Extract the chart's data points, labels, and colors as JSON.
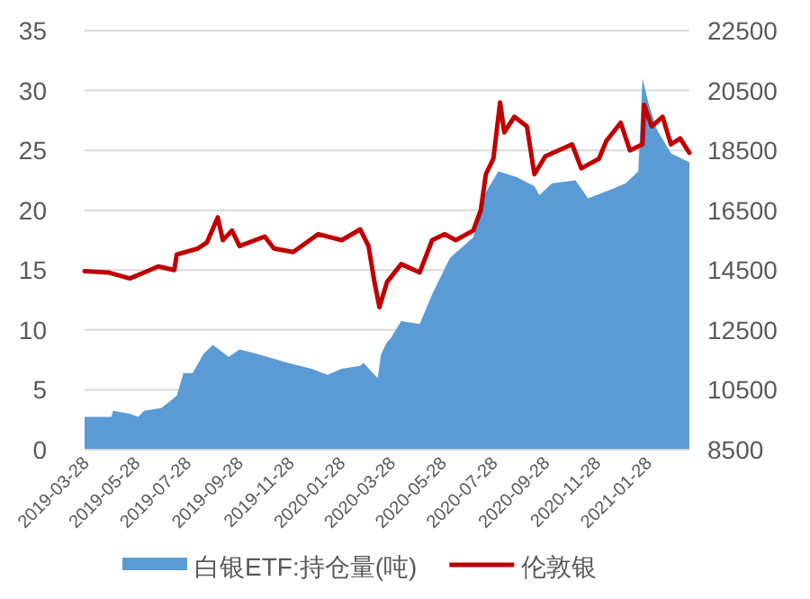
{
  "chart_data": {
    "type": "line",
    "xlim": [
      "2019-03-28",
      "2021-03-19"
    ],
    "xticks": [
      "2019-03-28",
      "2019-05-28",
      "2019-07-28",
      "2019-09-28",
      "2019-11-28",
      "2020-01-28",
      "2020-03-28",
      "2020-05-28",
      "2020-07-28",
      "2020-09-28",
      "2020-11-28",
      "2021-01-28"
    ],
    "ylim": [
      0,
      35
    ],
    "yticks": [
      0,
      5,
      10,
      15,
      20,
      25,
      30,
      35
    ],
    "y2lim": [
      8500,
      22500
    ],
    "y2ticks": [
      8500,
      10500,
      12500,
      14500,
      16500,
      18500,
      20500,
      22500
    ],
    "grid": "y",
    "legend": "bottom",
    "series": [
      {
        "name": "白银ETF:持仓量(吨)",
        "type": "area",
        "axis": "y2",
        "color": "#5b9bd5",
        "x": [
          "2019-03-28",
          "2019-04-29",
          "2019-05-01",
          "2019-05-21",
          "2019-05-31",
          "2019-06-07",
          "2019-06-28",
          "2019-07-16",
          "2019-07-24",
          "2019-08-04",
          "2019-08-17",
          "2019-08-28",
          "2019-09-16",
          "2019-09-29",
          "2019-10-20",
          "2019-11-26",
          "2019-12-24",
          "2020-01-12",
          "2020-01-29",
          "2020-02-20",
          "2020-02-24",
          "2020-03-08",
          "2020-03-12",
          "2020-03-16",
          "2020-03-23",
          "2020-03-27",
          "2020-04-09",
          "2020-05-01",
          "2020-05-16",
          "2020-06-06",
          "2020-07-04",
          "2020-07-19",
          "2020-08-03",
          "2020-08-25",
          "2020-09-15",
          "2020-09-21",
          "2020-10-06",
          "2020-11-03",
          "2020-11-18",
          "2020-12-16",
          "2021-01-02",
          "2021-01-17",
          "2021-01-22",
          "2021-01-29",
          "2021-02-08",
          "2021-02-25",
          "2021-03-19"
        ],
        "values": [
          9600,
          9600,
          9800,
          9700,
          9600,
          9800,
          9900,
          10300,
          11060,
          11060,
          11700,
          12000,
          11600,
          11850,
          11700,
          11400,
          11200,
          11000,
          11200,
          11300,
          11400,
          11000,
          10900,
          11700,
          12100,
          12200,
          12800,
          12700,
          13700,
          14900,
          15600,
          17100,
          17800,
          17600,
          17300,
          17000,
          17400,
          17500,
          16900,
          17200,
          17400,
          17800,
          20900,
          20100,
          19200,
          18400,
          18100
        ]
      },
      {
        "name": "伦敦银",
        "color": "#c00000",
        "x": [
          "2019-03-28",
          "2019-04-25",
          "2019-05-21",
          "2019-06-07",
          "2019-06-24",
          "2019-07-13",
          "2019-07-16",
          "2019-08-10",
          "2019-08-21",
          "2019-09-03",
          "2019-09-09",
          "2019-09-20",
          "2019-09-29",
          "2019-10-29",
          "2019-11-09",
          "2019-12-02",
          "2020-01-01",
          "2020-01-29",
          "2020-02-20",
          "2020-03-01",
          "2020-03-08",
          "2020-03-14",
          "2020-03-23",
          "2020-04-09",
          "2020-05-01",
          "2020-05-16",
          "2020-05-31",
          "2020-06-13",
          "2020-07-04",
          "2020-07-13",
          "2020-07-19",
          "2020-07-28",
          "2020-08-05",
          "2020-08-10",
          "2020-08-22",
          "2020-09-06",
          "2020-09-15",
          "2020-09-28",
          "2020-10-30",
          "2020-11-10",
          "2020-12-01",
          "2020-12-10",
          "2020-12-27",
          "2021-01-07",
          "2021-01-22",
          "2021-01-24",
          "2021-02-02",
          "2021-02-15",
          "2021-02-25",
          "2021-03-08",
          "2021-03-19"
        ],
        "values": [
          14.9,
          14.8,
          14.3,
          14.8,
          15.3,
          15.0,
          16.3,
          16.8,
          17.3,
          19.4,
          17.5,
          18.3,
          17.0,
          17.8,
          16.8,
          16.5,
          18.0,
          17.5,
          18.4,
          17.0,
          14.0,
          11.9,
          14.0,
          15.5,
          14.8,
          17.5,
          18.0,
          17.5,
          18.3,
          20.0,
          23.0,
          24.3,
          29.0,
          26.5,
          27.8,
          27.0,
          23.0,
          24.5,
          25.5,
          23.5,
          24.3,
          25.8,
          27.3,
          25.0,
          25.5,
          28.8,
          27.0,
          27.8,
          25.5,
          26.0,
          24.8
        ]
      }
    ]
  }
}
